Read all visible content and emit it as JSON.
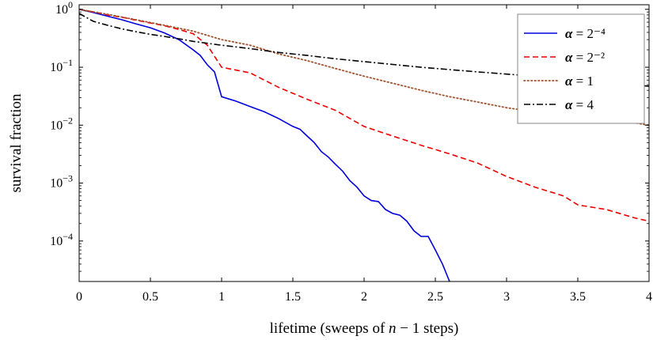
{
  "chart_data": {
    "type": "line",
    "title": "",
    "xlabel": "lifetime (sweeps of n − 1 steps)",
    "ylabel": "survival fraction",
    "xlim": [
      0,
      4
    ],
    "ylim": [
      2e-05,
      1.2
    ],
    "yscale": "log",
    "xticks": [
      0,
      0.5,
      1,
      1.5,
      2,
      2.5,
      3,
      3.5,
      4
    ],
    "xtick_labels": [
      "0",
      "0.5",
      "1",
      "1.5",
      "2",
      "2.5",
      "3",
      "3.5",
      "4"
    ],
    "yticks": [
      {
        "value": 1,
        "base": "10",
        "exp": "0"
      },
      {
        "value": 0.1,
        "base": "10",
        "exp": "−1"
      },
      {
        "value": 0.01,
        "base": "10",
        "exp": "−2"
      },
      {
        "value": 0.001,
        "base": "10",
        "exp": "−3"
      },
      {
        "value": 0.0001,
        "base": "10",
        "exp": "−4"
      }
    ],
    "grid": false,
    "legend_position": "top-right",
    "series": [
      {
        "name": "α = 2⁻⁴",
        "color": "#0000dd",
        "dash": "solid",
        "points": [
          [
            0,
            1.0
          ],
          [
            0.1,
            0.88
          ],
          [
            0.2,
            0.76
          ],
          [
            0.3,
            0.66
          ],
          [
            0.4,
            0.56
          ],
          [
            0.5,
            0.48
          ],
          [
            0.6,
            0.39
          ],
          [
            0.7,
            0.3
          ],
          [
            0.8,
            0.2
          ],
          [
            0.85,
            0.16
          ],
          [
            0.9,
            0.11
          ],
          [
            0.95,
            0.083
          ],
          [
            1.0,
            0.031
          ],
          [
            1.1,
            0.026
          ],
          [
            1.2,
            0.021
          ],
          [
            1.3,
            0.017
          ],
          [
            1.4,
            0.013
          ],
          [
            1.5,
            0.0095
          ],
          [
            1.55,
            0.0085
          ],
          [
            1.6,
            0.0065
          ],
          [
            1.65,
            0.005
          ],
          [
            1.7,
            0.0035
          ],
          [
            1.75,
            0.0028
          ],
          [
            1.8,
            0.0021
          ],
          [
            1.85,
            0.0016
          ],
          [
            1.9,
            0.0011
          ],
          [
            1.95,
            0.00085
          ],
          [
            2.0,
            0.0006
          ],
          [
            2.05,
            0.0005
          ],
          [
            2.1,
            0.00048
          ],
          [
            2.15,
            0.00035
          ],
          [
            2.2,
            0.0003
          ],
          [
            2.25,
            0.00028
          ],
          [
            2.3,
            0.00022
          ],
          [
            2.35,
            0.00015
          ],
          [
            2.4,
            0.00012
          ],
          [
            2.45,
            0.00012
          ],
          [
            2.5,
            7e-05
          ],
          [
            2.55,
            4e-05
          ],
          [
            2.6,
            2e-05
          ]
        ]
      },
      {
        "name": "α = 2⁻²",
        "color": "#ee0000",
        "dash": "dashed",
        "points": [
          [
            0,
            1.0
          ],
          [
            0.1,
            0.9
          ],
          [
            0.2,
            0.8
          ],
          [
            0.3,
            0.73
          ],
          [
            0.4,
            0.65
          ],
          [
            0.5,
            0.58
          ],
          [
            0.6,
            0.52
          ],
          [
            0.7,
            0.45
          ],
          [
            0.8,
            0.38
          ],
          [
            0.9,
            0.24
          ],
          [
            1.0,
            0.1
          ],
          [
            1.2,
            0.08
          ],
          [
            1.4,
            0.045
          ],
          [
            1.6,
            0.028
          ],
          [
            1.8,
            0.018
          ],
          [
            2.0,
            0.0095
          ],
          [
            2.2,
            0.0065
          ],
          [
            2.4,
            0.0045
          ],
          [
            2.6,
            0.0032
          ],
          [
            2.8,
            0.0022
          ],
          [
            3.0,
            0.0013
          ],
          [
            3.2,
            0.00085
          ],
          [
            3.4,
            0.0006
          ],
          [
            3.5,
            0.00042
          ],
          [
            3.7,
            0.00035
          ],
          [
            3.9,
            0.00025
          ],
          [
            4.0,
            0.00022
          ]
        ]
      },
      {
        "name": "α = 1",
        "color": "#a0522d",
        "dash": "dotted",
        "points": [
          [
            0,
            1.0
          ],
          [
            0.2,
            0.82
          ],
          [
            0.4,
            0.66
          ],
          [
            0.6,
            0.53
          ],
          [
            0.8,
            0.42
          ],
          [
            1.0,
            0.3
          ],
          [
            1.2,
            0.24
          ],
          [
            1.4,
            0.17
          ],
          [
            1.6,
            0.13
          ],
          [
            1.8,
            0.095
          ],
          [
            2.0,
            0.07
          ],
          [
            2.2,
            0.053
          ],
          [
            2.4,
            0.04
          ],
          [
            2.6,
            0.031
          ],
          [
            2.8,
            0.025
          ],
          [
            3.0,
            0.02
          ],
          [
            3.2,
            0.017
          ],
          [
            3.4,
            0.0155
          ],
          [
            3.6,
            0.0135
          ],
          [
            3.8,
            0.012
          ],
          [
            4.0,
            0.01
          ]
        ]
      },
      {
        "name": "α = 4",
        "color": "#000000",
        "dash": "dashdot",
        "points": [
          [
            0,
            0.85
          ],
          [
            0.1,
            0.62
          ],
          [
            0.2,
            0.53
          ],
          [
            0.3,
            0.46
          ],
          [
            0.4,
            0.41
          ],
          [
            0.5,
            0.37
          ],
          [
            0.6,
            0.34
          ],
          [
            0.7,
            0.31
          ],
          [
            0.8,
            0.28
          ],
          [
            1.0,
            0.24
          ],
          [
            1.2,
            0.21
          ],
          [
            1.4,
            0.18
          ],
          [
            1.6,
            0.16
          ],
          [
            1.8,
            0.14
          ],
          [
            2.0,
            0.125
          ],
          [
            2.4,
            0.1
          ],
          [
            2.8,
            0.083
          ],
          [
            3.2,
            0.07
          ],
          [
            3.6,
            0.058
          ],
          [
            4.0,
            0.047
          ]
        ]
      }
    ]
  }
}
